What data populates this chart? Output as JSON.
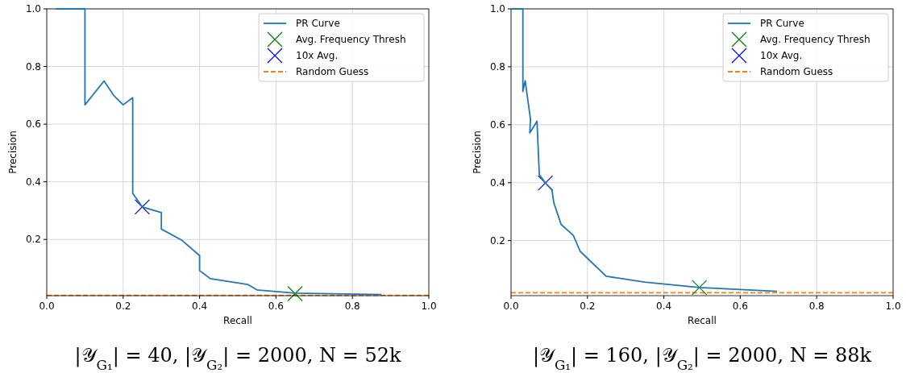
{
  "chart_data": [
    {
      "type": "line",
      "xlabel": "Recall",
      "ylabel": "Precision",
      "xlim": [
        0,
        1
      ],
      "ylim": [
        0.005,
        1
      ],
      "xticks": [
        {
          "value": 0,
          "label": "0.0"
        },
        {
          "value": 0.2,
          "label": "0.2"
        },
        {
          "value": 0.4,
          "label": "0.4"
        },
        {
          "value": 0.6,
          "label": "0.6"
        },
        {
          "value": 0.8,
          "label": "0.8"
        },
        {
          "value": 1,
          "label": "1.0"
        }
      ],
      "yticks": [
        {
          "value": 0.2,
          "label": "0.2"
        },
        {
          "value": 0.4,
          "label": "0.4"
        },
        {
          "value": 0.6,
          "label": "0.6"
        },
        {
          "value": 0.8,
          "label": "0.8"
        },
        {
          "value": 1,
          "label": "1.0"
        }
      ],
      "grid": true,
      "legend": "top right",
      "series": [
        {
          "name": "PR Curve",
          "color": "#1f77b4",
          "x": [
            0.023,
            0.1,
            0.1,
            0.15,
            0.175,
            0.2,
            0.225,
            0.225,
            0.25,
            0.3,
            0.3,
            0.354,
            0.4,
            0.4,
            0.428,
            0.526,
            0.55,
            0.65,
            0.876
          ],
          "values": [
            1,
            1,
            0.667,
            0.75,
            0.7,
            0.667,
            0.692,
            0.36,
            0.313,
            0.293,
            0.236,
            0.197,
            0.144,
            0.092,
            0.064,
            0.044,
            0.025,
            0.014,
            0.009
          ]
        },
        {
          "name": "Avg. Frequency Thresh",
          "type": "scatter",
          "marker": "cross",
          "color": "#008000",
          "x": [
            0.65
          ],
          "values": [
            0.012
          ]
        },
        {
          "name": "10x Avg.",
          "type": "scatter",
          "marker": "cross",
          "color": "#0000ff",
          "x": [
            0.25
          ],
          "values": [
            0.313
          ]
        }
      ],
      "ref_lines": [
        {
          "axis": "y",
          "value": 0.006,
          "label": "Random Guess",
          "color": "#ff7f0e",
          "line_style": "dashed"
        }
      ],
      "annotations": [
        "|𝒴$_{G₁}$| = 40, |𝒴$_{G₂}$| = 2000, N = 52k"
      ]
    },
    {
      "type": "line",
      "xlabel": "Recall",
      "ylabel": "Precision",
      "xlim": [
        0,
        1
      ],
      "ylim": [
        0.01,
        1
      ],
      "xticks": [
        {
          "value": 0,
          "label": "0.0"
        },
        {
          "value": 0.2,
          "label": "0.2"
        },
        {
          "value": 0.4,
          "label": "0.4"
        },
        {
          "value": 0.6,
          "label": "0.6"
        },
        {
          "value": 0.8,
          "label": "0.8"
        },
        {
          "value": 1,
          "label": "1.0"
        }
      ],
      "yticks": [
        {
          "value": 0.2,
          "label": "0.2"
        },
        {
          "value": 0.4,
          "label": "0.4"
        },
        {
          "value": 0.6,
          "label": "0.6"
        },
        {
          "value": 0.8,
          "label": "0.8"
        },
        {
          "value": 1,
          "label": "1.0"
        }
      ],
      "grid": true,
      "legend": "top right",
      "series": [
        {
          "name": "PR Curve",
          "color": "#1f77b4",
          "x": [
            0.002,
            0.031,
            0.031,
            0.037,
            0.051,
            0.049,
            0.068,
            0.074,
            0.09,
            0.107,
            0.112,
            0.131,
            0.163,
            0.181,
            0.249,
            0.349,
            0.493,
            0.696
          ],
          "values": [
            1,
            1,
            0.715,
            0.752,
            0.618,
            0.572,
            0.612,
            0.428,
            0.399,
            0.375,
            0.331,
            0.256,
            0.218,
            0.163,
            0.077,
            0.057,
            0.038,
            0.025
          ]
        },
        {
          "name": "Avg. Frequency Thresh",
          "type": "scatter",
          "marker": "cross",
          "color": "#008000",
          "x": [
            0.493
          ],
          "values": [
            0.038
          ]
        },
        {
          "name": "10x Avg.",
          "type": "scatter",
          "marker": "cross",
          "color": "#0000ff",
          "x": [
            0.09
          ],
          "values": [
            0.399
          ]
        }
      ],
      "ref_lines": [
        {
          "axis": "y",
          "value": 0.02,
          "label": "Random Guess",
          "color": "#ff7f0e",
          "line_style": "dashed"
        }
      ],
      "annotations": [
        "|𝒴$_{G₁}$| = 160, |𝒴$_{G₂}$| = 2000, N = 88k"
      ]
    }
  ]
}
